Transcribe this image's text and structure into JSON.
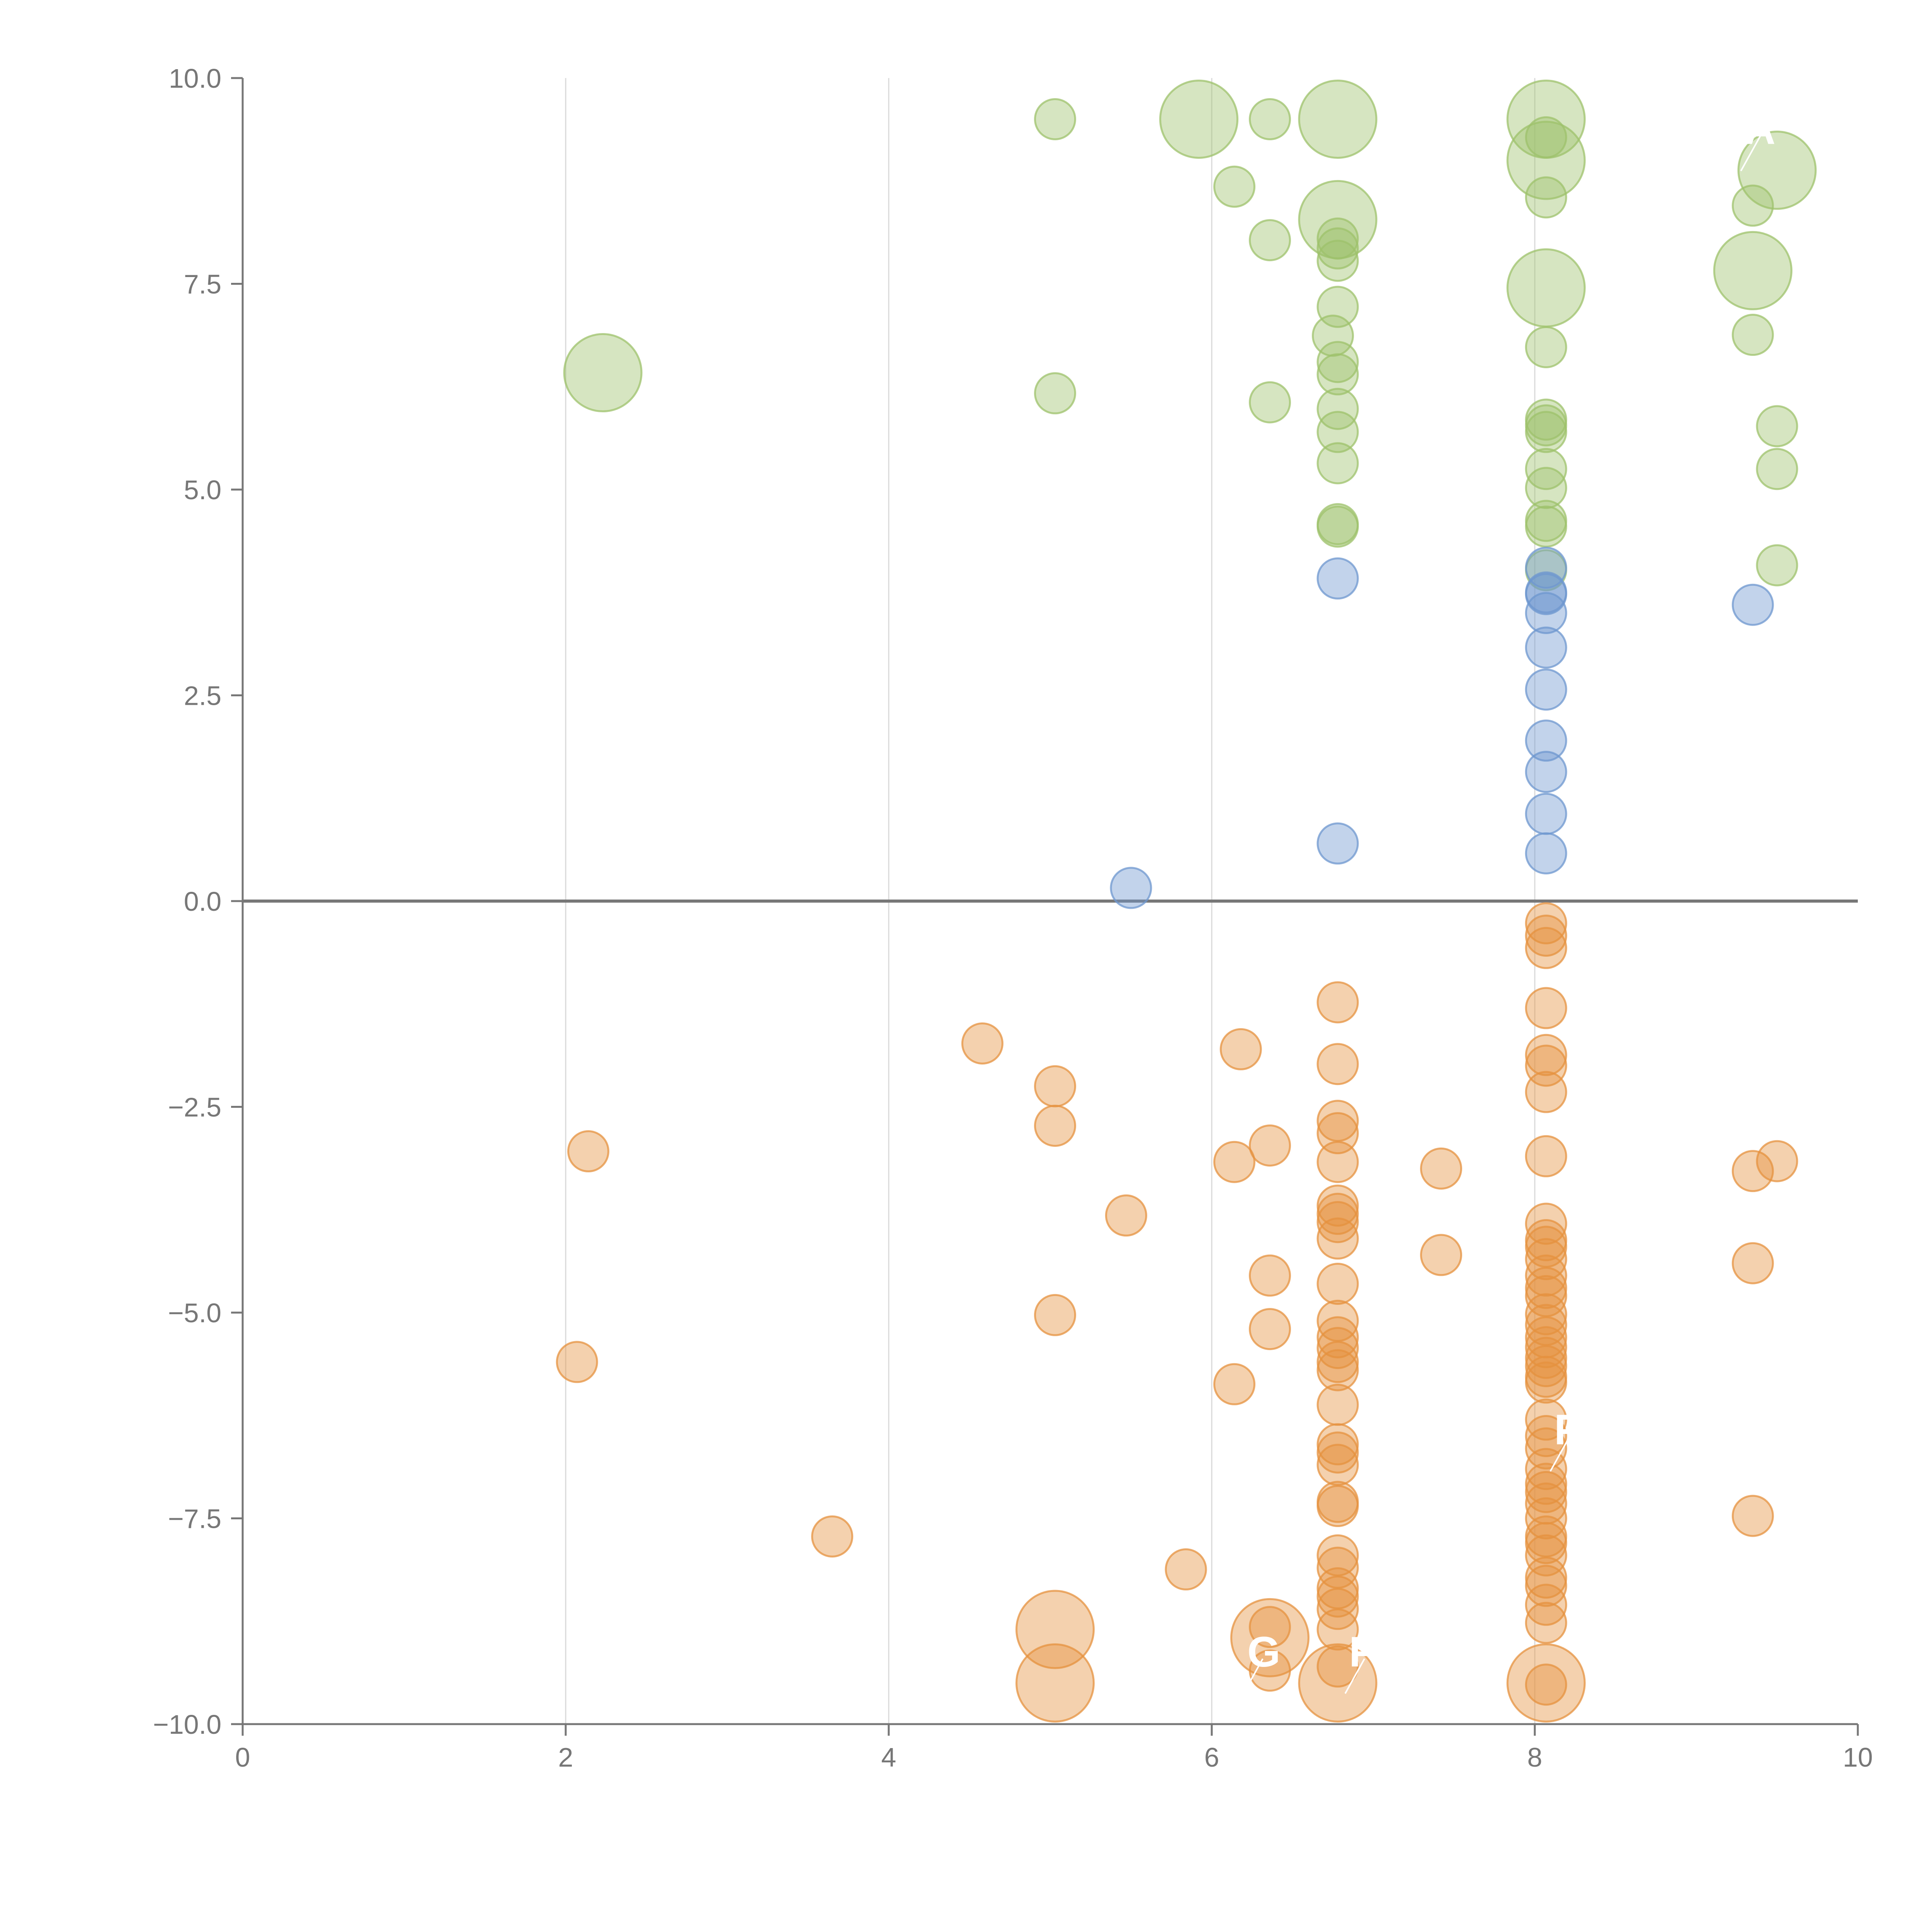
{
  "chart_data": {
    "type": "scatter",
    "title": "",
    "xlabel": "",
    "ylabel": "",
    "xlim": [
      0,
      10
    ],
    "ylim": [
      -10,
      10
    ],
    "x_ticks": [
      "0",
      "2",
      "4",
      "6",
      "8",
      "10"
    ],
    "y_ticks": [
      "10.0",
      "7.5",
      "5.0",
      "2.5",
      "0.0",
      "−2.5",
      "−5.0",
      "−7.5",
      "−10.0"
    ],
    "x_tick_values": [
      0,
      2,
      4,
      6,
      8,
      10
    ],
    "y_tick_values": [
      10,
      7.5,
      5,
      2.5,
      0,
      -2.5,
      -5,
      -7.5,
      -10
    ],
    "vertical_grid": [
      2,
      4,
      6,
      8
    ],
    "zero_line": 0,
    "colors": {
      "green": "#9dc26b",
      "blue": "#6d97cf",
      "orange": "#e5913f",
      "axis": "#777777",
      "grid": "#d9d9d9"
    },
    "series": [
      {
        "name": "green",
        "points": [
          [
            2.23,
            6.42,
            "l"
          ],
          [
            5.03,
            9.5,
            "s"
          ],
          [
            5.03,
            6.17,
            "s"
          ],
          [
            5.92,
            9.5,
            "l"
          ],
          [
            6.14,
            8.68,
            "s"
          ],
          [
            6.36,
            9.5,
            "s"
          ],
          [
            6.36,
            8.03,
            "s"
          ],
          [
            6.36,
            6.06,
            "s"
          ],
          [
            6.78,
            9.5,
            "l"
          ],
          [
            6.78,
            8.28,
            "l"
          ],
          [
            6.78,
            8.05,
            "s"
          ],
          [
            6.78,
            7.93,
            "s"
          ],
          [
            6.78,
            7.78,
            "s"
          ],
          [
            6.78,
            7.22,
            "s"
          ],
          [
            6.75,
            6.87,
            "s"
          ],
          [
            6.78,
            6.55,
            "s"
          ],
          [
            6.78,
            6.4,
            "s"
          ],
          [
            6.78,
            5.98,
            "s"
          ],
          [
            6.78,
            5.7,
            "s"
          ],
          [
            6.78,
            5.32,
            "s"
          ],
          [
            6.78,
            4.58,
            "s"
          ],
          [
            6.78,
            4.55,
            "s"
          ],
          [
            8.07,
            9.5,
            "l"
          ],
          [
            8.07,
            9.28,
            "s"
          ],
          [
            8.07,
            9.0,
            "l"
          ],
          [
            8.07,
            8.55,
            "s"
          ],
          [
            8.07,
            7.45,
            "l"
          ],
          [
            8.07,
            6.73,
            "s"
          ],
          [
            8.07,
            5.85,
            "s"
          ],
          [
            8.07,
            5.78,
            "s"
          ],
          [
            8.07,
            5.7,
            "s"
          ],
          [
            8.07,
            5.25,
            "s"
          ],
          [
            8.07,
            5.02,
            "s"
          ],
          [
            8.07,
            4.62,
            "s"
          ],
          [
            8.07,
            4.55,
            "s"
          ],
          [
            8.07,
            4.02,
            "s"
          ],
          [
            9.35,
            8.45,
            "s"
          ],
          [
            9.35,
            7.66,
            "l"
          ],
          [
            9.35,
            6.88,
            "s"
          ],
          [
            9.5,
            8.88,
            "l"
          ],
          [
            9.5,
            5.77,
            "s"
          ],
          [
            9.5,
            5.25,
            "s"
          ],
          [
            9.5,
            4.08,
            "s"
          ]
        ]
      },
      {
        "name": "blue",
        "points": [
          [
            5.5,
            0.16,
            "s"
          ],
          [
            6.78,
            3.92,
            "s"
          ],
          [
            6.78,
            0.7,
            "s"
          ],
          [
            8.07,
            4.05,
            "s"
          ],
          [
            8.07,
            3.75,
            "s"
          ],
          [
            8.07,
            3.73,
            "s"
          ],
          [
            8.07,
            3.5,
            "s"
          ],
          [
            8.07,
            3.08,
            "s"
          ],
          [
            8.07,
            2.57,
            "s"
          ],
          [
            8.07,
            1.95,
            "s"
          ],
          [
            8.07,
            1.57,
            "s"
          ],
          [
            8.07,
            1.06,
            "s"
          ],
          [
            8.07,
            0.58,
            "s"
          ],
          [
            9.35,
            3.6,
            "s"
          ]
        ]
      },
      {
        "name": "orange",
        "points": [
          [
            2.07,
            -5.6,
            "s"
          ],
          [
            2.14,
            -3.04,
            "s"
          ],
          [
            3.65,
            -7.72,
            "s"
          ],
          [
            4.58,
            -1.73,
            "s"
          ],
          [
            5.03,
            -2.25,
            "s"
          ],
          [
            5.03,
            -2.73,
            "s"
          ],
          [
            5.03,
            -5.03,
            "s"
          ],
          [
            5.03,
            -8.85,
            "l"
          ],
          [
            5.03,
            -9.5,
            "l"
          ],
          [
            5.47,
            -3.82,
            "s"
          ],
          [
            5.84,
            -8.12,
            "s"
          ],
          [
            6.14,
            -3.17,
            "s"
          ],
          [
            6.14,
            -5.87,
            "s"
          ],
          [
            6.18,
            -1.8,
            "s"
          ],
          [
            6.36,
            -2.97,
            "s"
          ],
          [
            6.36,
            -4.55,
            "s"
          ],
          [
            6.36,
            -5.2,
            "s"
          ],
          [
            6.36,
            -8.95,
            "l"
          ],
          [
            6.36,
            -8.82,
            "s"
          ],
          [
            6.36,
            -9.35,
            "s"
          ],
          [
            6.78,
            -1.23,
            "s"
          ],
          [
            6.78,
            -1.98,
            "s"
          ],
          [
            6.78,
            -2.67,
            "s"
          ],
          [
            6.78,
            -2.82,
            "s"
          ],
          [
            6.78,
            -3.17,
            "s"
          ],
          [
            6.78,
            -3.7,
            "s"
          ],
          [
            6.78,
            -3.8,
            "s"
          ],
          [
            6.78,
            -3.9,
            "s"
          ],
          [
            6.78,
            -4.1,
            "s"
          ],
          [
            6.78,
            -4.65,
            "s"
          ],
          [
            6.78,
            -5.1,
            "s"
          ],
          [
            6.78,
            -5.3,
            "s"
          ],
          [
            6.78,
            -5.43,
            "s"
          ],
          [
            6.78,
            -5.6,
            "s"
          ],
          [
            6.78,
            -5.7,
            "s"
          ],
          [
            6.78,
            -6.12,
            "s"
          ],
          [
            6.78,
            -6.6,
            "s"
          ],
          [
            6.78,
            -6.7,
            "s"
          ],
          [
            6.78,
            -6.85,
            "s"
          ],
          [
            6.78,
            -7.3,
            "s"
          ],
          [
            6.78,
            -7.35,
            "s"
          ],
          [
            6.78,
            -7.95,
            "s"
          ],
          [
            6.78,
            -8.1,
            "s"
          ],
          [
            6.78,
            -8.35,
            "s"
          ],
          [
            6.78,
            -8.45,
            "s"
          ],
          [
            6.78,
            -8.6,
            "s"
          ],
          [
            6.78,
            -8.85,
            "s"
          ],
          [
            6.78,
            -9.3,
            "s"
          ],
          [
            6.78,
            -9.5,
            "l"
          ],
          [
            7.42,
            -3.25,
            "s"
          ],
          [
            7.42,
            -4.3,
            "s"
          ],
          [
            8.07,
            -0.27,
            "s"
          ],
          [
            8.07,
            -0.42,
            "s"
          ],
          [
            8.07,
            -0.57,
            "s"
          ],
          [
            8.07,
            -1.3,
            "s"
          ],
          [
            8.07,
            -1.87,
            "s"
          ],
          [
            8.07,
            -2.0,
            "s"
          ],
          [
            8.07,
            -2.32,
            "s"
          ],
          [
            8.07,
            -3.1,
            "s"
          ],
          [
            8.07,
            -3.92,
            "s"
          ],
          [
            8.07,
            -4.12,
            "s"
          ],
          [
            8.07,
            -4.2,
            "s"
          ],
          [
            8.07,
            -4.35,
            "s"
          ],
          [
            8.07,
            -4.55,
            "s"
          ],
          [
            8.07,
            -4.7,
            "s"
          ],
          [
            8.07,
            -4.8,
            "s"
          ],
          [
            8.07,
            -5.02,
            "s"
          ],
          [
            8.07,
            -5.15,
            "s"
          ],
          [
            8.07,
            -5.3,
            "s"
          ],
          [
            8.07,
            -5.42,
            "s"
          ],
          [
            8.07,
            -5.55,
            "s"
          ],
          [
            8.07,
            -5.65,
            "s"
          ],
          [
            8.07,
            -5.78,
            "s"
          ],
          [
            8.07,
            -5.85,
            "s"
          ],
          [
            8.07,
            -6.3,
            "s"
          ],
          [
            8.07,
            -6.5,
            "s"
          ],
          [
            8.07,
            -6.65,
            "s"
          ],
          [
            8.07,
            -6.9,
            "s"
          ],
          [
            8.07,
            -7.08,
            "s"
          ],
          [
            8.07,
            -7.18,
            "s"
          ],
          [
            8.07,
            -7.32,
            "s"
          ],
          [
            8.07,
            -7.5,
            "s"
          ],
          [
            8.07,
            -7.72,
            "s"
          ],
          [
            8.07,
            -7.8,
            "s"
          ],
          [
            8.07,
            -7.95,
            "s"
          ],
          [
            8.07,
            -8.22,
            "s"
          ],
          [
            8.07,
            -8.32,
            "s"
          ],
          [
            8.07,
            -8.55,
            "s"
          ],
          [
            8.07,
            -8.77,
            "s"
          ],
          [
            8.07,
            -9.5,
            "l"
          ],
          [
            8.07,
            -9.52,
            "s"
          ],
          [
            9.35,
            -3.28,
            "s"
          ],
          [
            9.35,
            -4.4,
            "s"
          ],
          [
            9.35,
            -7.47,
            "s"
          ],
          [
            9.5,
            -3.16,
            "s"
          ]
        ]
      }
    ],
    "point_labels": [
      {
        "text": "P",
        "x": 8.12,
        "y": -6.6
      },
      {
        "text": "G",
        "x": 6.22,
        "y": -9.3
      },
      {
        "text": "P",
        "x": 6.85,
        "y": -9.3
      },
      {
        "text": "A",
        "x": 9.3,
        "y": 9.2
      }
    ]
  }
}
